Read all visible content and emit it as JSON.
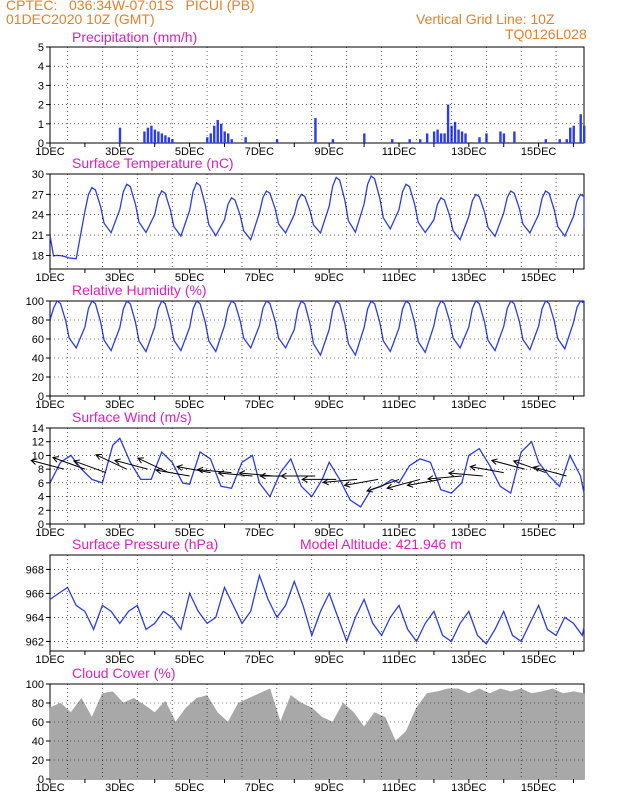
{
  "header": {
    "line1_left": "CPTEC:   036:34W-07:01S   PICUI (PB)",
    "line2_left": "01DEC2020 10Z (GMT)",
    "line1_right": "Vertical Grid Line: 10Z",
    "line2_right": "TQ0126L028",
    "altitude": "Model Altitude: 421.946 m"
  },
  "colors": {
    "header": "#e8802a",
    "title": "#e020c0",
    "series": "#2a3cf0",
    "cloud": "#a8a8a8",
    "wind_arrow": "#000000"
  },
  "day_labels": [
    "1DEC",
    "3DEC",
    "5DEC",
    "7DEC",
    "9DEC",
    "11DEC",
    "13DEC",
    "15DEC"
  ],
  "chart_data": [
    {
      "id": "precip",
      "type": "bar",
      "title": "Precipitation (mm/h)",
      "ylim": [
        0,
        5
      ],
      "yticks": [
        0,
        1,
        2,
        3,
        4,
        5
      ],
      "grid": true,
      "x_days_range": [
        0,
        15.3
      ],
      "x": [
        2.0,
        2.7,
        2.8,
        2.9,
        3.0,
        3.1,
        3.2,
        3.3,
        3.4,
        3.5,
        4.5,
        4.6,
        4.7,
        4.8,
        4.9,
        5.0,
        5.1,
        5.2,
        5.6,
        6.5,
        7.6,
        8.1,
        9.0,
        9.8,
        10.3,
        10.6,
        10.8,
        11.0,
        11.1,
        11.2,
        11.3,
        11.4,
        11.5,
        11.6,
        11.7,
        11.8,
        11.9,
        12.3,
        12.5,
        12.9,
        13.0,
        13.3,
        14.2,
        14.6,
        14.8,
        14.9,
        15.0,
        15.2,
        15.3
      ],
      "values": [
        0.8,
        0.6,
        0.8,
        0.9,
        0.7,
        0.6,
        0.5,
        0.4,
        0.3,
        0.2,
        0.3,
        0.5,
        0.9,
        1.2,
        1.0,
        0.6,
        0.5,
        0.2,
        0.3,
        0.2,
        1.3,
        0.2,
        0.5,
        0.2,
        0.2,
        0.2,
        0.5,
        0.6,
        0.7,
        0.5,
        0.5,
        2.0,
        0.9,
        1.1,
        0.7,
        0.6,
        0.5,
        0.3,
        0.5,
        0.6,
        0.5,
        0.6,
        0.2,
        0.2,
        0.2,
        0.8,
        0.9,
        1.5,
        0.9
      ]
    },
    {
      "id": "temp",
      "type": "line",
      "title": "Surface Temperature (nC)",
      "ylim": [
        16,
        30
      ],
      "yticks": [
        18,
        21,
        24,
        27,
        30
      ],
      "grid": true,
      "diurnal": {
        "day_offsets": [
          0,
          0.1,
          0.2,
          0.3,
          0.45,
          0.55,
          0.75,
          1.0
        ],
        "max": [
          18,
          28,
          28.5,
          27.5,
          28.7,
          26.5,
          27.5,
          27,
          29.5,
          29.7,
          28.5,
          26.5,
          27,
          27.5,
          27.5,
          27
        ],
        "min": [
          17.5,
          21,
          21,
          20.5,
          20.5,
          20,
          21,
          21,
          21,
          21.5,
          21,
          20,
          20.5,
          21,
          20.5,
          20.5
        ],
        "start_value": 21,
        "end_value": 22
      }
    },
    {
      "id": "rh",
      "type": "line",
      "title": "Relative Humidity (%)",
      "ylim": [
        0,
        100
      ],
      "yticks": [
        0,
        20,
        40,
        60,
        80,
        100
      ],
      "grid": true,
      "diurnal": {
        "day_offsets": [
          0,
          0.1,
          0.2,
          0.3,
          0.45,
          0.55,
          0.75,
          1.0
        ],
        "max": [
          100,
          100,
          100,
          100,
          100,
          100,
          100,
          100,
          100,
          100,
          100,
          100,
          100,
          100,
          100,
          100
        ],
        "min": [
          48,
          45,
          44,
          45,
          44,
          48,
          48,
          40,
          40,
          44,
          43,
          48,
          45,
          46,
          47,
          55
        ],
        "start_value": 80,
        "end_value": 98
      }
    },
    {
      "id": "wind",
      "type": "line",
      "title": "Surface Wind (m/s)",
      "ylim": [
        0,
        14
      ],
      "yticks": [
        0,
        2,
        4,
        6,
        8,
        10,
        12,
        14
      ],
      "grid": true,
      "x": [
        0.0,
        0.3,
        0.6,
        0.9,
        1.2,
        1.5,
        1.8,
        2.0,
        2.3,
        2.6,
        2.9,
        3.2,
        3.5,
        3.8,
        4.0,
        4.3,
        4.6,
        4.9,
        5.2,
        5.5,
        5.8,
        6.0,
        6.3,
        6.6,
        6.9,
        7.2,
        7.5,
        7.8,
        8.0,
        8.3,
        8.6,
        8.9,
        9.2,
        9.5,
        9.8,
        10.0,
        10.3,
        10.6,
        10.9,
        11.2,
        11.5,
        11.8,
        12.0,
        12.3,
        12.6,
        12.9,
        13.2,
        13.5,
        13.8,
        14.0,
        14.3,
        14.6,
        14.9,
        15.2,
        15.3
      ],
      "values": [
        6.0,
        9.0,
        10.0,
        8.0,
        6.5,
        6.0,
        11.5,
        12.5,
        9.0,
        6.5,
        6.5,
        10.5,
        9.0,
        6.0,
        5.8,
        10.5,
        9.5,
        5.5,
        5.2,
        9.0,
        10.0,
        6.0,
        4.0,
        7.5,
        9.5,
        5.5,
        4.0,
        6.5,
        9.0,
        6.5,
        3.5,
        2.5,
        5.0,
        5.5,
        6.5,
        6.0,
        8.5,
        9.5,
        9.0,
        5.0,
        4.5,
        6.0,
        10.0,
        11.0,
        8.5,
        5.5,
        4.5,
        10.5,
        12.0,
        9.0,
        7.0,
        5.5,
        10.0,
        7.0,
        4.5
      ],
      "arrows_x": [
        0.4,
        1.0,
        1.6,
        2.2,
        2.8,
        3.4,
        4.0,
        4.6,
        5.2,
        5.8,
        6.4,
        7.0,
        7.6,
        8.2,
        8.8,
        9.4,
        10.0,
        10.6,
        11.2,
        11.8,
        12.4,
        13.0,
        13.6,
        14.2,
        14.8
      ],
      "arrows_speed": [
        8,
        8,
        7.5,
        8,
        8,
        7.5,
        7,
        7.5,
        7.5,
        7,
        7,
        7,
        7,
        6.5,
        6.5,
        6.5,
        6.5,
        6.5,
        6.5,
        7,
        7,
        7.5,
        8,
        7.5,
        7
      ],
      "arrows_dir_deg": [
        165,
        160,
        160,
        155,
        165,
        155,
        170,
        170,
        175,
        175,
        175,
        180,
        180,
        180,
        185,
        190,
        200,
        195,
        190,
        185,
        175,
        170,
        165,
        160,
        165
      ]
    },
    {
      "id": "pressure",
      "type": "line",
      "title": "Surface Pressure (hPa)",
      "ylim": [
        961.2,
        969.2
      ],
      "yticks": [
        962,
        964,
        966,
        968
      ],
      "grid": true,
      "x": [
        0.0,
        0.25,
        0.5,
        0.75,
        1.0,
        1.25,
        1.5,
        1.75,
        2.0,
        2.25,
        2.5,
        2.75,
        3.0,
        3.25,
        3.5,
        3.75,
        4.0,
        4.25,
        4.5,
        4.75,
        5.0,
        5.25,
        5.5,
        5.75,
        6.0,
        6.25,
        6.5,
        6.75,
        7.0,
        7.25,
        7.5,
        7.75,
        8.0,
        8.25,
        8.5,
        8.75,
        9.0,
        9.25,
        9.5,
        9.75,
        10.0,
        10.25,
        10.5,
        10.75,
        11.0,
        11.25,
        11.5,
        11.75,
        12.0,
        12.25,
        12.5,
        12.75,
        13.0,
        13.25,
        13.5,
        13.75,
        14.0,
        14.25,
        14.5,
        14.75,
        15.0,
        15.25,
        15.3
      ],
      "values": [
        965.5,
        966.0,
        966.5,
        965.0,
        964.5,
        963.0,
        965.0,
        964.5,
        963.5,
        964.5,
        965.0,
        963.0,
        963.5,
        964.5,
        964.0,
        963.0,
        966.0,
        964.5,
        963.5,
        964.0,
        966.5,
        965.0,
        963.5,
        964.5,
        967.5,
        965.5,
        964.0,
        965.0,
        967.0,
        965.0,
        962.5,
        964.5,
        966.0,
        964.0,
        962.0,
        964.0,
        965.5,
        963.5,
        962.5,
        964.0,
        965.0,
        963.0,
        962.0,
        963.5,
        964.5,
        962.5,
        962.0,
        963.5,
        964.5,
        962.5,
        961.8,
        963.0,
        964.5,
        962.5,
        962.0,
        963.5,
        965.0,
        963.0,
        962.5,
        964.0,
        963.5,
        962.5,
        963.2
      ]
    },
    {
      "id": "cloud",
      "type": "area",
      "title": "Cloud Cover (%)",
      "ylim": [
        0,
        100
      ],
      "yticks": [
        0,
        20,
        40,
        60,
        80,
        100
      ],
      "grid": true,
      "x": [
        0.0,
        0.3,
        0.6,
        0.9,
        1.2,
        1.5,
        1.8,
        2.1,
        2.4,
        2.7,
        3.0,
        3.3,
        3.6,
        3.9,
        4.2,
        4.5,
        4.8,
        5.1,
        5.4,
        5.7,
        6.0,
        6.3,
        6.6,
        6.9,
        7.2,
        7.5,
        7.8,
        8.1,
        8.4,
        8.7,
        9.0,
        9.3,
        9.6,
        9.9,
        10.2,
        10.5,
        10.8,
        11.1,
        11.4,
        11.7,
        12.0,
        12.3,
        12.6,
        12.9,
        13.2,
        13.5,
        13.8,
        14.1,
        14.4,
        14.7,
        15.0,
        15.3
      ],
      "values": [
        75,
        80,
        70,
        85,
        65,
        90,
        92,
        80,
        85,
        78,
        70,
        82,
        60,
        75,
        85,
        88,
        70,
        60,
        80,
        85,
        90,
        95,
        60,
        88,
        80,
        75,
        65,
        60,
        80,
        70,
        55,
        70,
        65,
        40,
        50,
        75,
        90,
        92,
        95,
        95,
        90,
        95,
        90,
        95,
        92,
        95,
        90,
        92,
        95,
        90,
        92,
        90
      ]
    }
  ]
}
